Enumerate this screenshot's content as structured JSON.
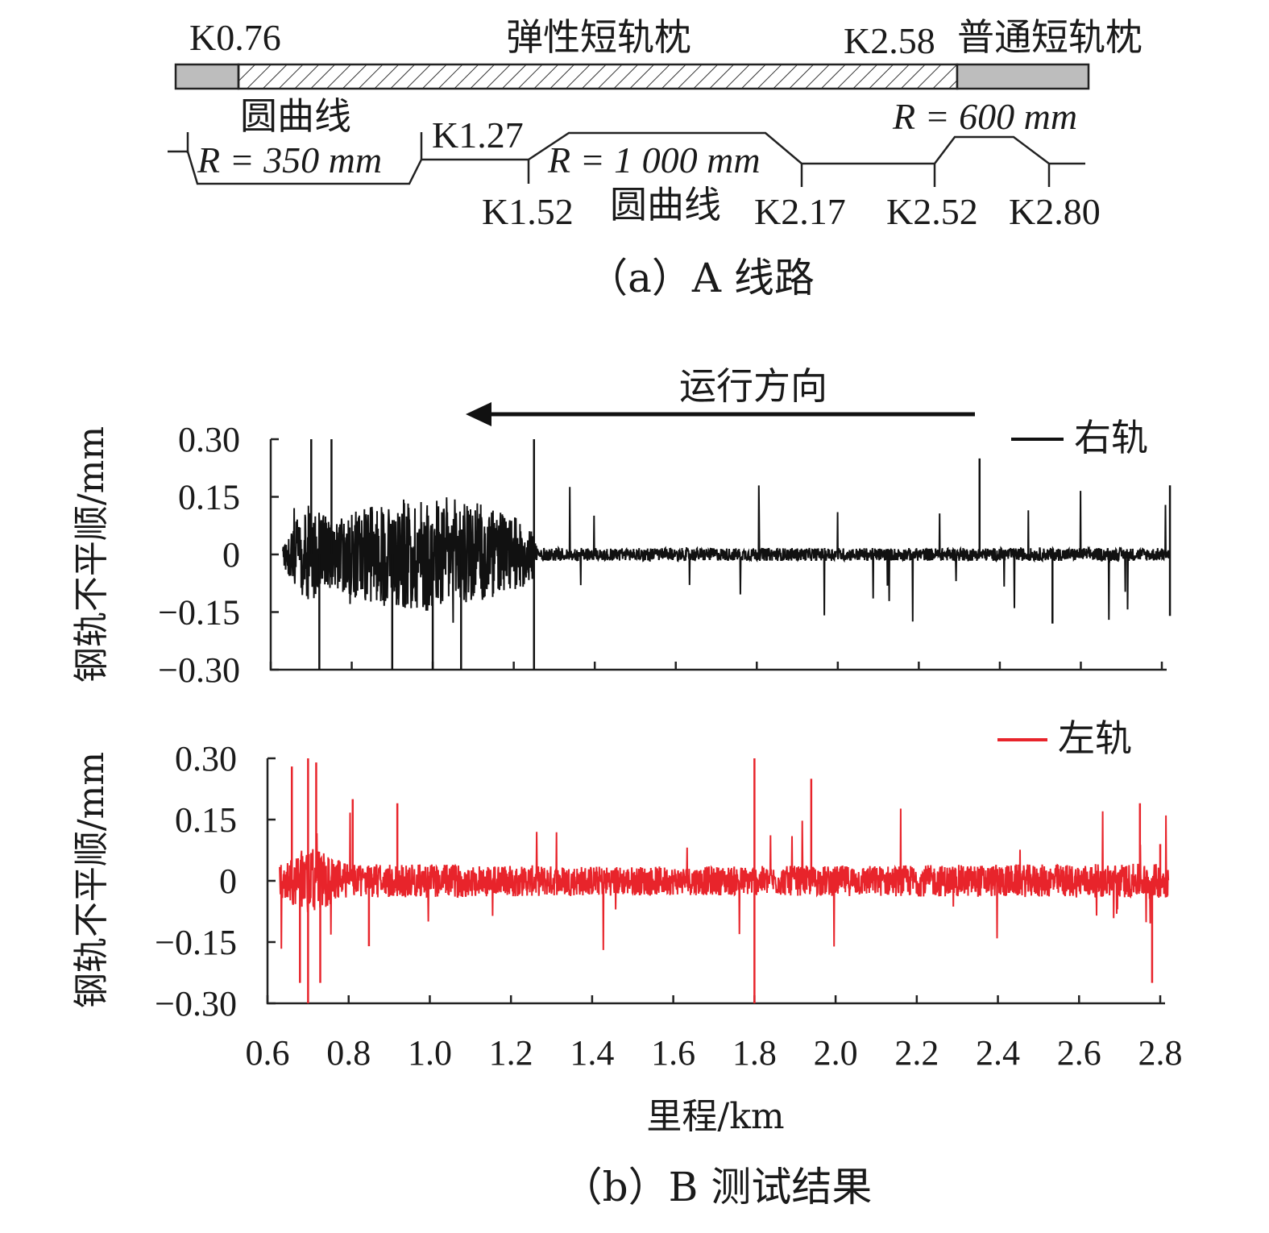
{
  "route": {
    "sleeper_left_km": "K0.76",
    "sleeper_middle": "弹性短轨枕",
    "sleeper_right_km": "K2.58",
    "sleeper_right": "普通短轨枕",
    "curve_label": "圆曲线",
    "curve2_label": "圆曲线",
    "r1": "R = 350 mm",
    "r2": "R = 1 000 mm",
    "r3": "R = 600 mm",
    "k127": "K1.27",
    "k152": "K1.52",
    "k217": "K2.17",
    "k252": "K2.52",
    "k280": "K2.80",
    "caption": "（a）A 线路"
  },
  "direction_label": "运行方向",
  "caption_b": "（b）B 测试结果",
  "colors": {
    "right_rail": "#111111",
    "left_rail": "#e8242b"
  },
  "chart_data": [
    {
      "type": "line",
      "legend": "右轨",
      "ylabel": "钢轨不平顺/mm",
      "xlim": [
        0.6,
        2.8
      ],
      "ylim": [
        -0.3,
        0.3
      ],
      "yticks": [
        "0.30",
        "0.15",
        "0",
        "−0.15",
        "−0.30"
      ],
      "series": [
        {
          "name": "右轨",
          "x_range_km": [
            0.63,
            2.82
          ],
          "amplitude_envelope": [
            {
              "x": 0.63,
              "rms": 0.02
            },
            {
              "x": 0.66,
              "rms": 0.06
            },
            {
              "x": 0.7,
              "rms": 0.1
            },
            {
              "x": 0.75,
              "rms": 0.06
            },
            {
              "x": 0.8,
              "rms": 0.08
            },
            {
              "x": 0.9,
              "rms": 0.1
            },
            {
              "x": 1.0,
              "rms": 0.11
            },
            {
              "x": 1.1,
              "rms": 0.1
            },
            {
              "x": 1.2,
              "rms": 0.07
            },
            {
              "x": 1.25,
              "rms": 0.05
            },
            {
              "x": 1.26,
              "rms": 0.012
            },
            {
              "x": 2.82,
              "rms": 0.012
            }
          ],
          "peaks": [
            {
              "x": 0.7,
              "y": 0.3
            },
            {
              "x": 0.72,
              "y": -0.3
            },
            {
              "x": 0.75,
              "y": 0.3
            },
            {
              "x": 0.9,
              "y": -0.3
            },
            {
              "x": 1.0,
              "y": -0.3
            },
            {
              "x": 1.07,
              "y": -0.3
            },
            {
              "x": 1.25,
              "y": 0.3
            },
            {
              "x": 1.25,
              "y": -0.3
            },
            {
              "x": 2.35,
              "y": 0.25
            },
            {
              "x": 2.82,
              "y": 0.18
            },
            {
              "x": 2.82,
              "y": -0.16
            },
            {
              "x": 2.53,
              "y": -0.18
            }
          ]
        }
      ]
    },
    {
      "type": "line",
      "legend": "左轨",
      "xlabel": "里程/km",
      "ylabel": "钢轨不平顺/mm",
      "xlim": [
        0.6,
        2.8
      ],
      "ylim": [
        -0.3,
        0.3
      ],
      "xticks": [
        "0.6",
        "0.8",
        "1.0",
        "1.2",
        "1.4",
        "1.6",
        "1.8",
        "2.0",
        "2.2",
        "2.4",
        "2.6",
        "2.8"
      ],
      "yticks": [
        "0.30",
        "0.15",
        "0",
        "−0.15",
        "−0.30"
      ],
      "series": [
        {
          "name": "左轨",
          "x_range_km": [
            0.63,
            2.82
          ],
          "amplitude_envelope": [
            {
              "x": 0.63,
              "rms": 0.03
            },
            {
              "x": 0.7,
              "rms": 0.06
            },
            {
              "x": 0.8,
              "rms": 0.03
            },
            {
              "x": 1.6,
              "rms": 0.025
            },
            {
              "x": 2.8,
              "rms": 0.03
            }
          ],
          "peaks": [
            {
              "x": 0.66,
              "y": 0.28
            },
            {
              "x": 0.68,
              "y": -0.25
            },
            {
              "x": 0.7,
              "y": 0.3
            },
            {
              "x": 0.7,
              "y": -0.3
            },
            {
              "x": 0.72,
              "y": 0.29
            },
            {
              "x": 0.73,
              "y": -0.25
            },
            {
              "x": 0.81,
              "y": 0.2
            },
            {
              "x": 0.85,
              "y": -0.16
            },
            {
              "x": 0.92,
              "y": 0.19
            },
            {
              "x": 1.8,
              "y": 0.3
            },
            {
              "x": 1.8,
              "y": -0.3
            },
            {
              "x": 1.94,
              "y": 0.25
            },
            {
              "x": 2.75,
              "y": 0.19
            },
            {
              "x": 2.78,
              "y": -0.25
            },
            {
              "x": 2.8,
              "y": 0.09
            }
          ]
        }
      ]
    }
  ]
}
